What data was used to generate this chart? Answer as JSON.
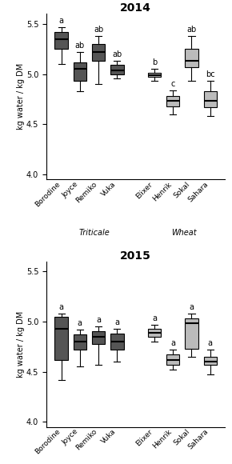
{
  "title_2014": "2014",
  "title_2015": "2015",
  "ylabel": "kg water / kg DM",
  "ylim": [
    3.95,
    5.6
  ],
  "yticks": [
    4.0,
    4.5,
    5.0,
    5.5
  ],
  "triticale_color": "#555555",
  "wheat_color": "#bbbbbb",
  "boxes_2014": [
    {
      "label": "Borodine",
      "q1": 5.25,
      "median": 5.35,
      "q3": 5.42,
      "whislo": 5.1,
      "whishi": 5.47,
      "sig": "a",
      "group": "triticale"
    },
    {
      "label": "Joyce",
      "q1": 4.93,
      "median": 5.05,
      "q3": 5.12,
      "whislo": 4.83,
      "whishi": 5.22,
      "sig": "ab",
      "group": "triticale"
    },
    {
      "label": "Remiko",
      "q1": 5.13,
      "median": 5.22,
      "q3": 5.3,
      "whislo": 4.9,
      "whishi": 5.38,
      "sig": "ab",
      "group": "triticale"
    },
    {
      "label": "Vuka",
      "q1": 5.0,
      "median": 5.04,
      "q3": 5.09,
      "whislo": 4.96,
      "whishi": 5.13,
      "sig": "ab",
      "group": "triticale"
    },
    {
      "label": "Elixer",
      "q1": 4.97,
      "median": 4.99,
      "q3": 5.01,
      "whislo": 4.93,
      "whishi": 5.05,
      "sig": "b",
      "group": "wheat"
    },
    {
      "label": "Henrik",
      "q1": 4.68,
      "median": 4.73,
      "q3": 4.78,
      "whislo": 4.6,
      "whishi": 4.84,
      "sig": "c",
      "group": "wheat"
    },
    {
      "label": "Sokal",
      "q1": 5.07,
      "median": 5.13,
      "q3": 5.25,
      "whislo": 4.93,
      "whishi": 5.38,
      "sig": "ab",
      "group": "wheat"
    },
    {
      "label": "Sahara",
      "q1": 4.67,
      "median": 4.73,
      "q3": 4.83,
      "whislo": 4.58,
      "whishi": 4.93,
      "sig": "bc",
      "group": "wheat"
    }
  ],
  "boxes_2015": [
    {
      "label": "Borodine",
      "q1": 4.62,
      "median": 4.93,
      "q3": 5.05,
      "whislo": 4.42,
      "whishi": 5.08,
      "sig": "a",
      "group": "triticale"
    },
    {
      "label": "Joyce",
      "q1": 4.72,
      "median": 4.8,
      "q3": 4.87,
      "whislo": 4.55,
      "whishi": 4.92,
      "sig": "a",
      "group": "triticale"
    },
    {
      "label": "Remiko",
      "q1": 4.78,
      "median": 4.85,
      "q3": 4.9,
      "whislo": 4.57,
      "whishi": 4.95,
      "sig": "a",
      "group": "triticale"
    },
    {
      "label": "Vuka",
      "q1": 4.72,
      "median": 4.8,
      "q3": 4.88,
      "whislo": 4.6,
      "whishi": 4.93,
      "sig": "a",
      "group": "triticale"
    },
    {
      "label": "Elixer",
      "q1": 4.85,
      "median": 4.89,
      "q3": 4.93,
      "whislo": 4.8,
      "whishi": 4.97,
      "sig": "a",
      "group": "wheat"
    },
    {
      "label": "Henrik",
      "q1": 4.57,
      "median": 4.62,
      "q3": 4.67,
      "whislo": 4.52,
      "whishi": 4.72,
      "sig": "a",
      "group": "wheat"
    },
    {
      "label": "Sokal",
      "q1": 4.73,
      "median": 4.98,
      "q3": 5.03,
      "whislo": 4.65,
      "whishi": 5.08,
      "sig": "a",
      "group": "wheat"
    },
    {
      "label": "Sahara",
      "q1": 4.57,
      "median": 4.6,
      "q3": 4.65,
      "whislo": 4.47,
      "whishi": 4.72,
      "sig": "a",
      "group": "wheat"
    }
  ]
}
